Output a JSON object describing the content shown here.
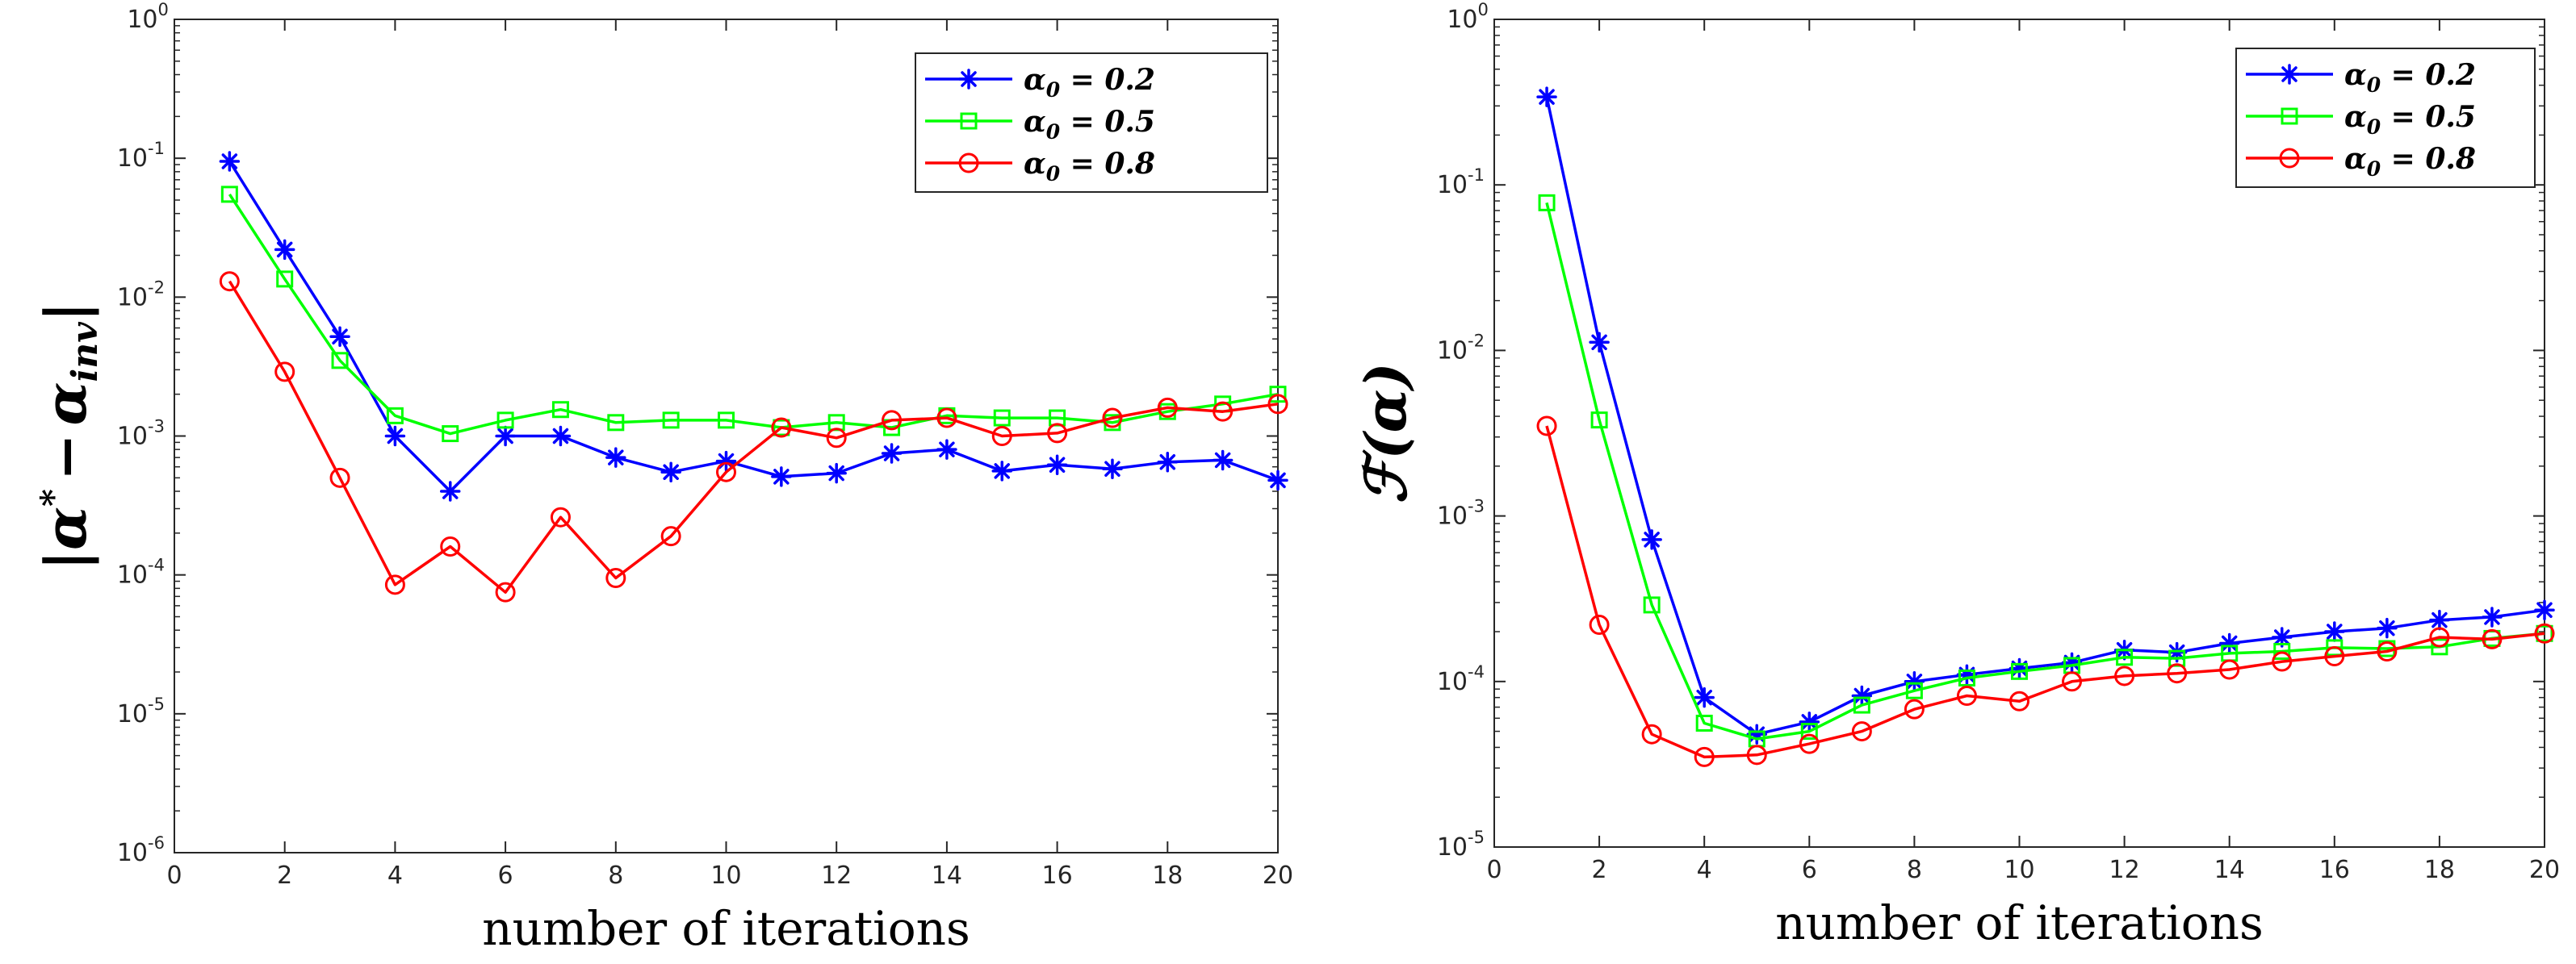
{
  "chart_data": [
    {
      "type": "line",
      "yscale": "log",
      "xlabel": "number of iterations",
      "ylabel": "|α* − α_inv|",
      "ylabel_parts": {
        "open": "|",
        "alpha1": "α",
        "star": "*",
        "minus": "−",
        "alpha2": "α",
        "sub": "inv",
        "close": "|"
      },
      "xlim": [
        0,
        20
      ],
      "ylim": [
        1e-06,
        1
      ],
      "xticks": [
        "0",
        "2",
        "4",
        "6",
        "8",
        "10",
        "12",
        "14",
        "16",
        "18",
        "20"
      ],
      "yticks": [
        {
          "base": "10",
          "exp": "-6"
        },
        {
          "base": "10",
          "exp": "-5"
        },
        {
          "base": "10",
          "exp": "-4"
        },
        {
          "base": "10",
          "exp": "-3"
        },
        {
          "base": "10",
          "exp": "-2"
        },
        {
          "base": "10",
          "exp": "-1"
        },
        {
          "base": "10",
          "exp": "0"
        }
      ],
      "legend_position": "top-right",
      "x": [
        1,
        2,
        3,
        4,
        5,
        6,
        7,
        8,
        9,
        10,
        11,
        12,
        13,
        14,
        15,
        16,
        17,
        18,
        19,
        20
      ],
      "series": [
        {
          "name": "α0 = 0.2",
          "legend": {
            "sym": "α",
            "sub": "0",
            "rest": " = 0.2"
          },
          "color": "#0000ff",
          "marker": "star",
          "values": [
            0.095,
            0.022,
            0.0052,
            0.001,
            0.0004,
            0.001,
            0.001,
            0.0007,
            0.00055,
            0.00066,
            0.00051,
            0.00054,
            0.00075,
            0.0008,
            0.00056,
            0.00062,
            0.00058,
            0.00065,
            0.00067,
            0.00048
          ]
        },
        {
          "name": "α0 = 0.5",
          "legend": {
            "sym": "α",
            "sub": "0",
            "rest": " = 0.5"
          },
          "color": "#00ff00",
          "marker": "square",
          "values": [
            0.055,
            0.0135,
            0.0035,
            0.0014,
            0.00104,
            0.0013,
            0.00155,
            0.00125,
            0.0013,
            0.0013,
            0.00115,
            0.00125,
            0.00115,
            0.0014,
            0.00135,
            0.00135,
            0.00125,
            0.0015,
            0.0017,
            0.002
          ]
        },
        {
          "name": "α0 = 0.8",
          "legend": {
            "sym": "α",
            "sub": "0",
            "rest": " = 0.8"
          },
          "color": "#ff0000",
          "marker": "circle",
          "values": [
            0.013,
            0.0029,
            0.0005,
            8.5e-05,
            0.00016,
            7.5e-05,
            0.00026,
            9.5e-05,
            0.00019,
            0.00055,
            0.00115,
            0.00097,
            0.0013,
            0.00135,
            0.001,
            0.00105,
            0.00135,
            0.0016,
            0.0015,
            0.0017
          ]
        }
      ]
    },
    {
      "type": "line",
      "yscale": "log",
      "xlabel": "number of iterations",
      "ylabel": "ℱ(α)",
      "ylabel_parts": {
        "text": "ℱ(α)"
      },
      "xlim": [
        0,
        20
      ],
      "ylim": [
        1e-05,
        1
      ],
      "xticks": [
        "0",
        "2",
        "4",
        "6",
        "8",
        "10",
        "12",
        "14",
        "16",
        "18",
        "20"
      ],
      "yticks": [
        {
          "base": "10",
          "exp": "-5"
        },
        {
          "base": "10",
          "exp": "-4"
        },
        {
          "base": "10",
          "exp": "-3"
        },
        {
          "base": "10",
          "exp": "-2"
        },
        {
          "base": "10",
          "exp": "-1"
        },
        {
          "base": "10",
          "exp": "0"
        }
      ],
      "legend_position": "top-right",
      "x": [
        1,
        2,
        3,
        4,
        5,
        6,
        7,
        8,
        9,
        10,
        11,
        12,
        13,
        14,
        15,
        16,
        17,
        18,
        19,
        20
      ],
      "series": [
        {
          "name": "α0 = 0.2",
          "legend": {
            "sym": "α",
            "sub": "0",
            "rest": " = 0.2"
          },
          "color": "#0000ff",
          "marker": "star",
          "values": [
            0.34,
            0.0112,
            0.00072,
            8e-05,
            4.8e-05,
            5.7e-05,
            8.2e-05,
            0.0001,
            0.00011,
            0.00012,
            0.00013,
            0.000155,
            0.00015,
            0.00017,
            0.000185,
            0.0002,
            0.00021,
            0.000235,
            0.000245,
            0.00027
          ]
        },
        {
          "name": "α0 = 0.5",
          "legend": {
            "sym": "α",
            "sub": "0",
            "rest": " = 0.5"
          },
          "color": "#00ff00",
          "marker": "square",
          "values": [
            0.078,
            0.0038,
            0.00029,
            5.6e-05,
            4.5e-05,
            5e-05,
            7.2e-05,
            8.8e-05,
            0.000105,
            0.000115,
            0.000125,
            0.00014,
            0.000138,
            0.000148,
            0.000152,
            0.00016,
            0.000158,
            0.000162,
            0.000182,
            0.000195
          ]
        },
        {
          "name": "α0 = 0.8",
          "legend": {
            "sym": "α",
            "sub": "0",
            "rest": " = 0.8"
          },
          "color": "#ff0000",
          "marker": "circle",
          "values": [
            0.0035,
            0.00022,
            4.8e-05,
            3.5e-05,
            3.6e-05,
            4.2e-05,
            5e-05,
            6.8e-05,
            8.2e-05,
            7.6e-05,
            0.0001,
            0.000108,
            0.000112,
            0.000118,
            0.000132,
            0.000142,
            0.000152,
            0.000185,
            0.00018,
            0.000195
          ]
        }
      ]
    }
  ]
}
